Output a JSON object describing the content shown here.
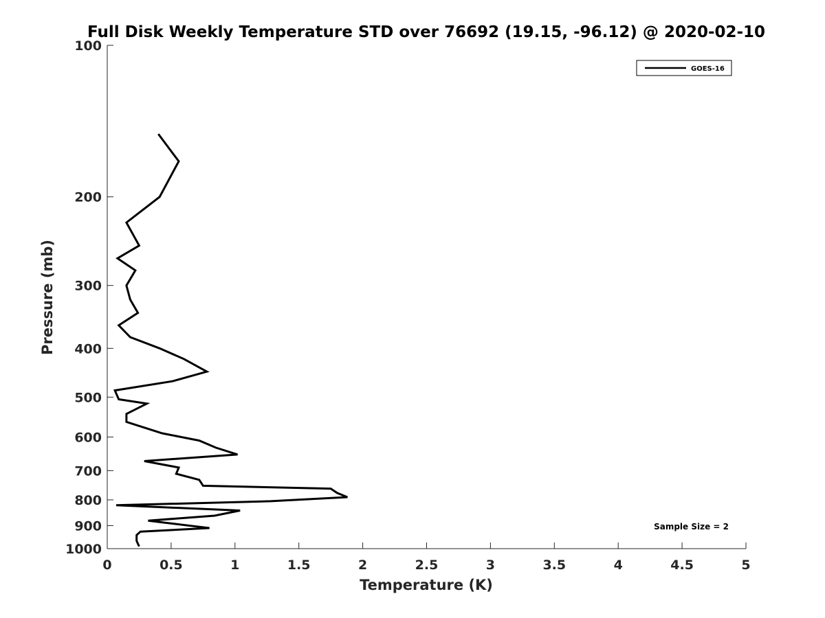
{
  "chart_data": {
    "type": "line",
    "title": "Full Disk Weekly Temperature STD over 76692 (19.15, -96.12) @ 2020-02-10",
    "xlabel": "Temperature (K)",
    "ylabel": "Pressure (mb)",
    "xlim": [
      0,
      5
    ],
    "ylim": [
      100,
      1000
    ],
    "y_scale": "log",
    "y_reversed": true,
    "x_ticks": [
      "0",
      "0.5",
      "1",
      "1.5",
      "2",
      "2.5",
      "3",
      "3.5",
      "4",
      "4.5",
      "5"
    ],
    "y_ticks": [
      "100",
      "200",
      "300",
      "400",
      "500",
      "600",
      "700",
      "800",
      "900",
      "1000"
    ],
    "grid": false,
    "legend_position": "top-right",
    "series": [
      {
        "name": "GOES-16",
        "color": "#000000",
        "x": [
          0.4,
          0.56,
          0.41,
          0.15,
          0.25,
          0.08,
          0.22,
          0.15,
          0.18,
          0.24,
          0.09,
          0.18,
          0.41,
          0.6,
          0.78,
          0.51,
          0.06,
          0.09,
          0.31,
          0.15,
          0.15,
          0.43,
          0.72,
          0.85,
          1.02,
          0.29,
          0.56,
          0.54,
          0.72,
          0.75,
          1.75,
          1.8,
          1.88,
          1.28,
          0.07,
          1.04,
          0.84,
          0.32,
          0.8,
          0.26,
          0.23,
          0.23,
          0.25
        ],
        "y": [
          150,
          170,
          200,
          225,
          250,
          265,
          280,
          300,
          320,
          340,
          360,
          380,
          400,
          420,
          445,
          465,
          485,
          505,
          515,
          540,
          560,
          590,
          610,
          630,
          650,
          670,
          690,
          710,
          730,
          750,
          760,
          775,
          790,
          805,
          820,
          840,
          860,
          880,
          910,
          925,
          940,
          965,
          990
        ]
      }
    ],
    "annotations": [
      "Sample Size = 2"
    ]
  }
}
